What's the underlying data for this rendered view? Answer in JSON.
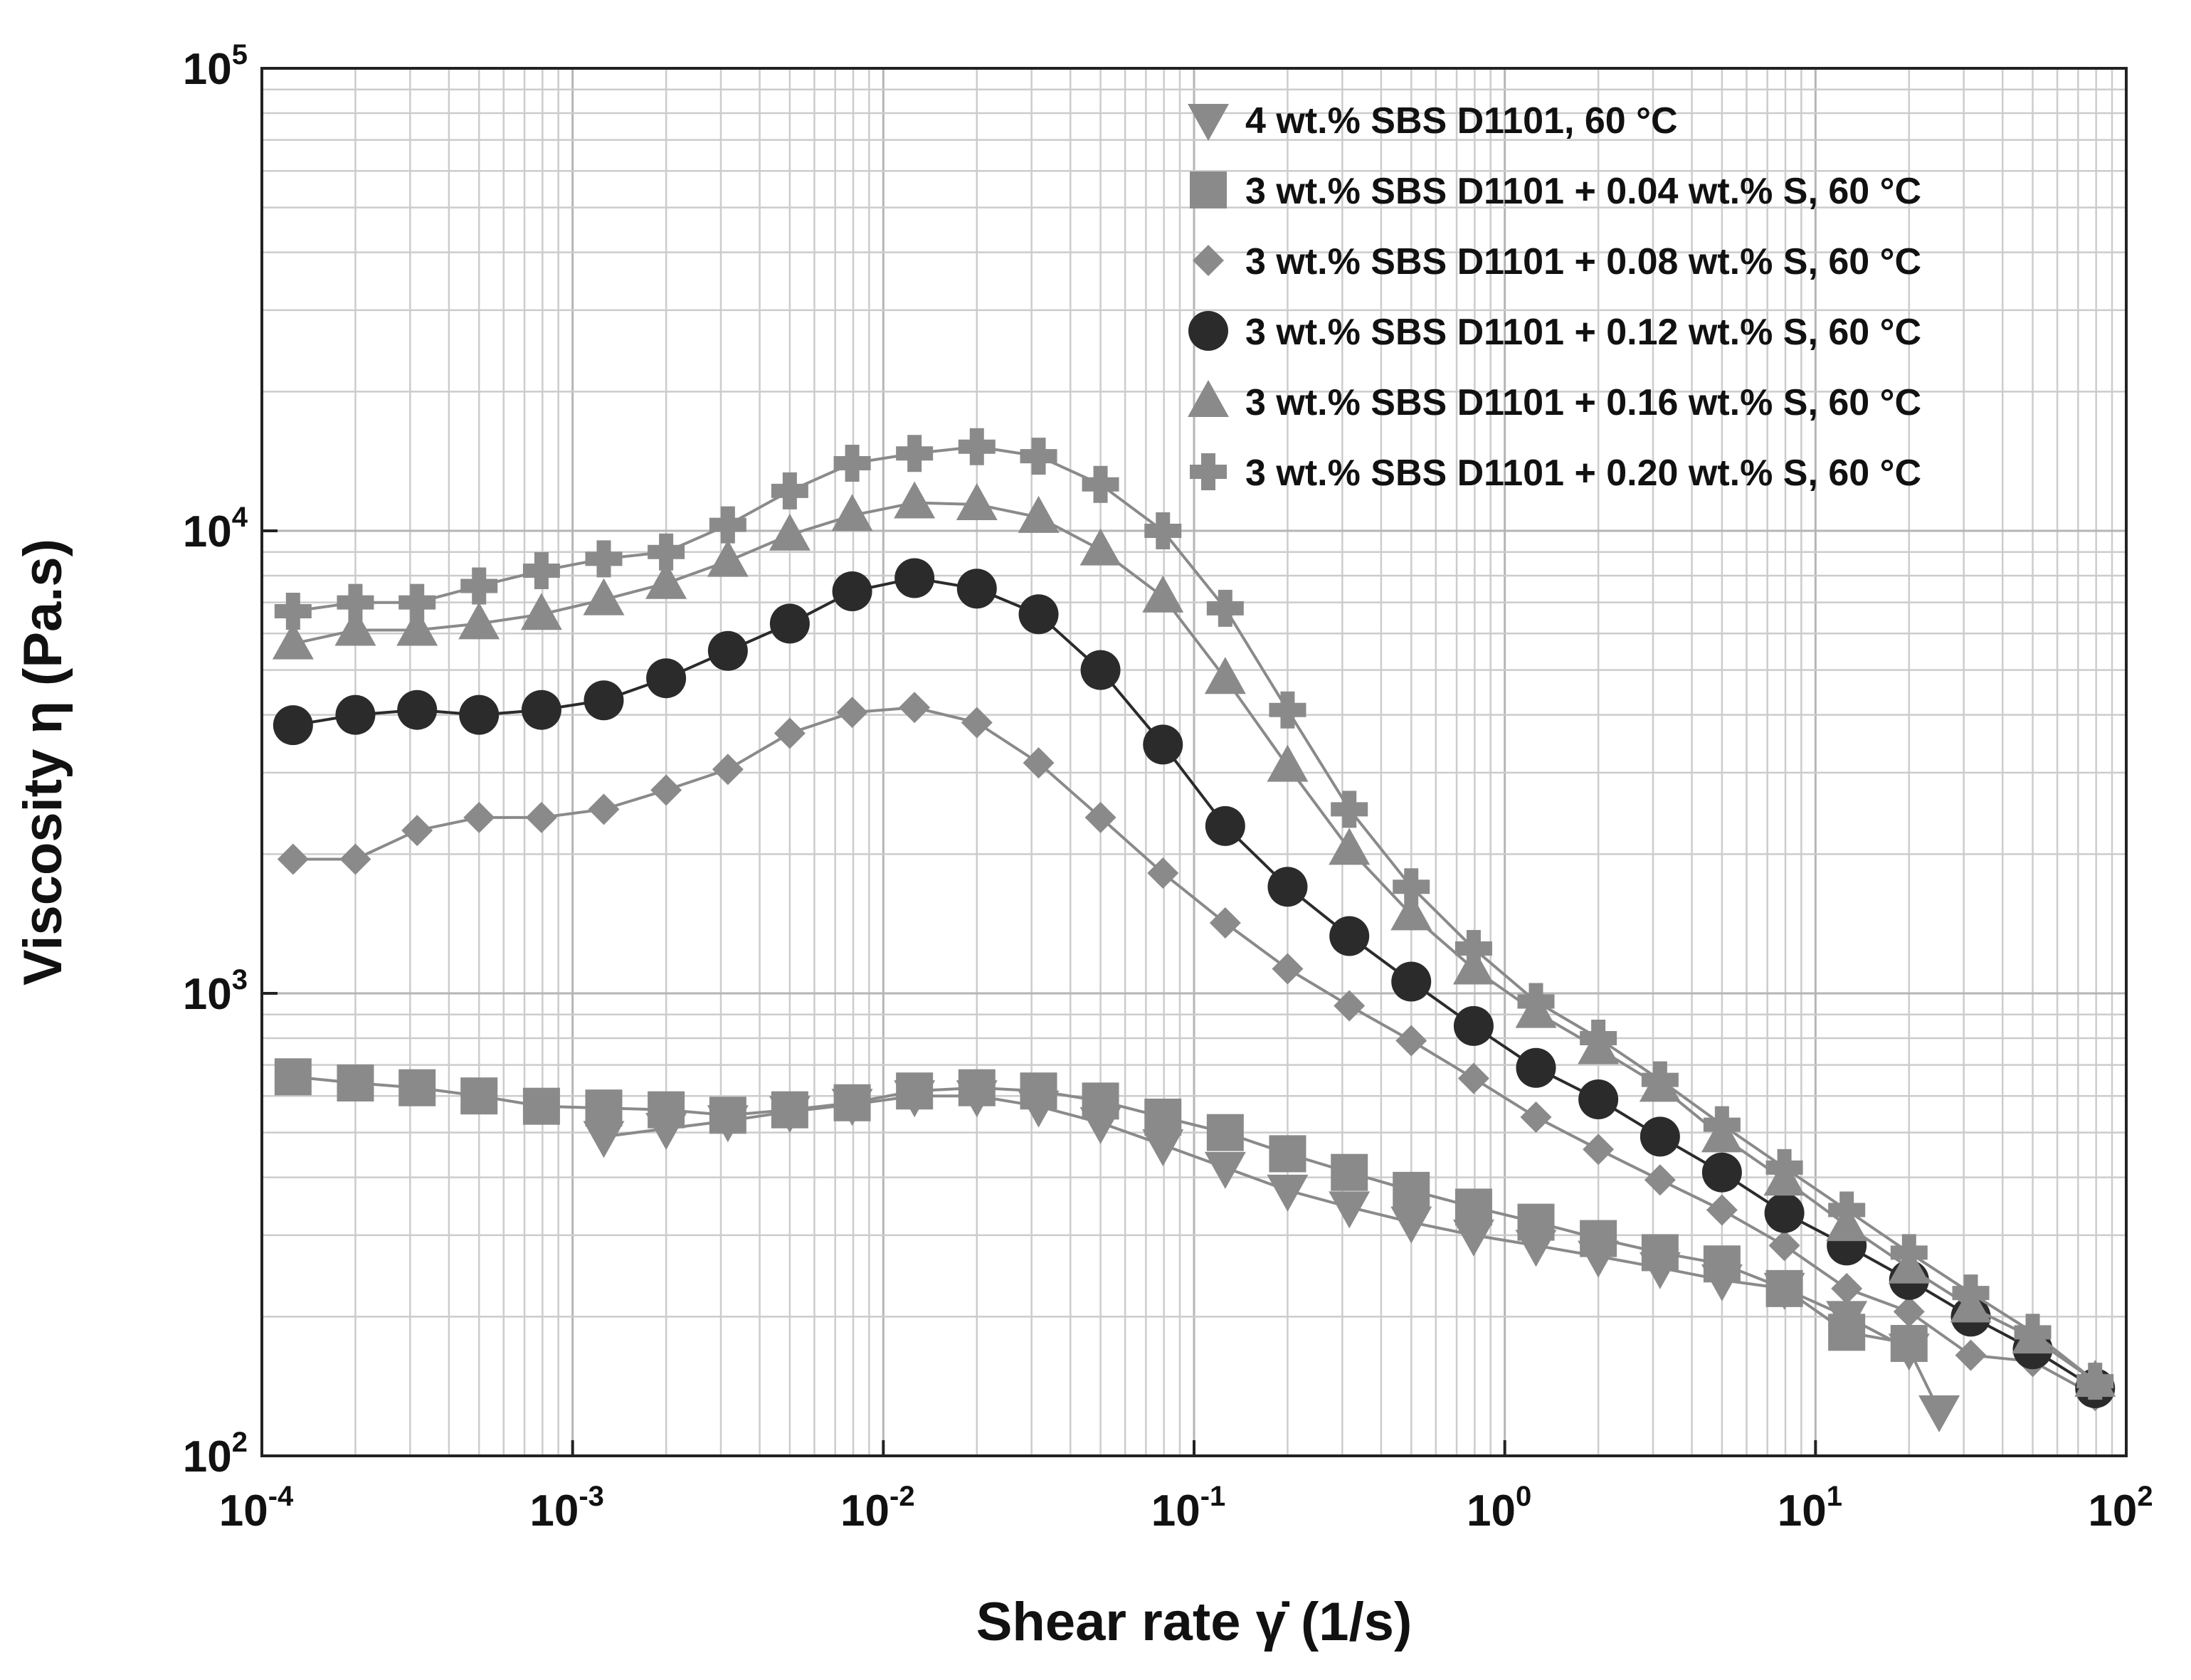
{
  "chart_data": {
    "type": "scatter",
    "title": "",
    "xlabel": "Shear rate γ̇ (1/s)",
    "ylabel": "Viscosity η (Pa.s)",
    "xscale": "log",
    "yscale": "log",
    "xlim": [
      0.0001,
      100
    ],
    "ylim": [
      100,
      100000
    ],
    "grid": true,
    "legend_position": "top-right",
    "x_ticks": [
      {
        "base": "10",
        "exp": "-4"
      },
      {
        "base": "10",
        "exp": "-3"
      },
      {
        "base": "10",
        "exp": "-2"
      },
      {
        "base": "10",
        "exp": "-1"
      },
      {
        "base": "10",
        "exp": "0"
      },
      {
        "base": "10",
        "exp": "1"
      },
      {
        "base": "10",
        "exp": "2"
      }
    ],
    "y_ticks": [
      {
        "base": "10",
        "exp": "2"
      },
      {
        "base": "10",
        "exp": "3"
      },
      {
        "base": "10",
        "exp": "4"
      },
      {
        "base": "10",
        "exp": "5"
      }
    ],
    "series": [
      {
        "name": "4 wt.% SBS D1101, 60 °C",
        "marker": "triangle-down",
        "color": "#8a8a8a",
        "x": [
          0.00126,
          0.002,
          0.00316,
          0.005,
          0.00794,
          0.0126,
          0.02,
          0.0316,
          0.05,
          0.0794,
          0.126,
          0.2,
          0.316,
          0.5,
          0.794,
          1.26,
          2,
          3.16,
          5,
          7.94,
          12.6,
          20,
          25
        ],
        "y": [
          490,
          510,
          530,
          555,
          575,
          600,
          600,
          570,
          525,
          470,
          420,
          375,
          345,
          320,
          300,
          285,
          270,
          255,
          240,
          230,
          200,
          170,
          125
        ]
      },
      {
        "name": "3 wt.% SBS D1101 + 0.04 wt.% S, 60 °C",
        "marker": "square",
        "color": "#8a8a8a",
        "x": [
          0.000126,
          0.0002,
          0.000316,
          0.0005,
          0.000794,
          0.00126,
          0.002,
          0.00316,
          0.005,
          0.00794,
          0.0126,
          0.02,
          0.0316,
          0.05,
          0.0794,
          0.126,
          0.2,
          0.316,
          0.5,
          0.794,
          1.26,
          2,
          3.16,
          5,
          7.94,
          12.6,
          20
        ],
        "y": [
          660,
          640,
          625,
          600,
          570,
          565,
          560,
          545,
          560,
          580,
          615,
          625,
          615,
          585,
          540,
          500,
          450,
          410,
          375,
          345,
          320,
          295,
          275,
          260,
          230,
          185,
          175
        ]
      },
      {
        "name": "3 wt.% SBS D1101 + 0.08 wt.% S, 60 °C",
        "marker": "diamond",
        "color": "#8a8a8a",
        "x": [
          0.000126,
          0.0002,
          0.000316,
          0.0005,
          0.000794,
          0.00126,
          0.002,
          0.00316,
          0.005,
          0.00794,
          0.0126,
          0.02,
          0.0316,
          0.05,
          0.0794,
          0.126,
          0.2,
          0.316,
          0.5,
          0.794,
          1.26,
          2,
          3.16,
          5,
          7.94,
          12.6,
          20,
          31.6,
          50,
          79.4
        ],
        "y": [
          1950,
          1950,
          2250,
          2400,
          2400,
          2500,
          2750,
          3050,
          3650,
          4050,
          4150,
          3850,
          3150,
          2400,
          1820,
          1420,
          1130,
          940,
          790,
          655,
          540,
          460,
          395,
          340,
          285,
          230,
          205,
          165,
          160,
          135
        ]
      },
      {
        "name": "3 wt.% SBS D1101 + 0.12 wt.% S, 60 °C",
        "marker": "circle",
        "color": "#2b2b2b",
        "x": [
          0.000126,
          0.0002,
          0.000316,
          0.0005,
          0.000794,
          0.00126,
          0.002,
          0.00316,
          0.005,
          0.00794,
          0.0126,
          0.02,
          0.0316,
          0.05,
          0.0794,
          0.126,
          0.2,
          0.316,
          0.5,
          0.794,
          1.26,
          2,
          3.16,
          5,
          7.94,
          12.6,
          20,
          31.6,
          50,
          79.4
        ],
        "y": [
          3800,
          4000,
          4100,
          4000,
          4100,
          4300,
          4800,
          5500,
          6300,
          7400,
          7900,
          7500,
          6600,
          5000,
          3450,
          2300,
          1700,
          1330,
          1060,
          850,
          690,
          590,
          490,
          410,
          335,
          285,
          240,
          200,
          170,
          140
        ]
      },
      {
        "name": "3 wt.% SBS D1101 + 0.16 wt.% S, 60 °C",
        "marker": "triangle-up",
        "color": "#8a8a8a",
        "x": [
          0.000126,
          0.0002,
          0.000316,
          0.0005,
          0.000794,
          0.00126,
          0.002,
          0.00316,
          0.005,
          0.00794,
          0.0126,
          0.02,
          0.0316,
          0.05,
          0.0794,
          0.126,
          0.2,
          0.316,
          0.5,
          0.794,
          1.26,
          2,
          3.16,
          5,
          7.94,
          12.6,
          20,
          31.6,
          50,
          79.4
        ],
        "y": [
          5700,
          6100,
          6100,
          6300,
          6600,
          7100,
          7700,
          8600,
          9800,
          10800,
          11500,
          11400,
          10700,
          9100,
          7200,
          4800,
          3100,
          2050,
          1480,
          1130,
          910,
          760,
          630,
          490,
          395,
          315,
          255,
          210,
          180,
          145
        ]
      },
      {
        "name": "3 wt.% SBS D1101 + 0.20 wt.% S, 60 °C",
        "marker": "plus",
        "color": "#8a8a8a",
        "x": [
          0.000126,
          0.0002,
          0.000316,
          0.0005,
          0.000794,
          0.00126,
          0.002,
          0.00316,
          0.005,
          0.00794,
          0.0126,
          0.02,
          0.0316,
          0.05,
          0.0794,
          0.126,
          0.2,
          0.316,
          0.5,
          0.794,
          1.26,
          2,
          3.16,
          5,
          7.94,
          12.6,
          20,
          31.6,
          50,
          79.4
        ],
        "y": [
          6700,
          7000,
          7000,
          7600,
          8200,
          8700,
          9000,
          10300,
          12200,
          14000,
          14700,
          15200,
          14500,
          12600,
          10000,
          6800,
          4100,
          2500,
          1700,
          1250,
          960,
          800,
          650,
          520,
          420,
          340,
          275,
          225,
          185,
          145
        ]
      }
    ]
  }
}
